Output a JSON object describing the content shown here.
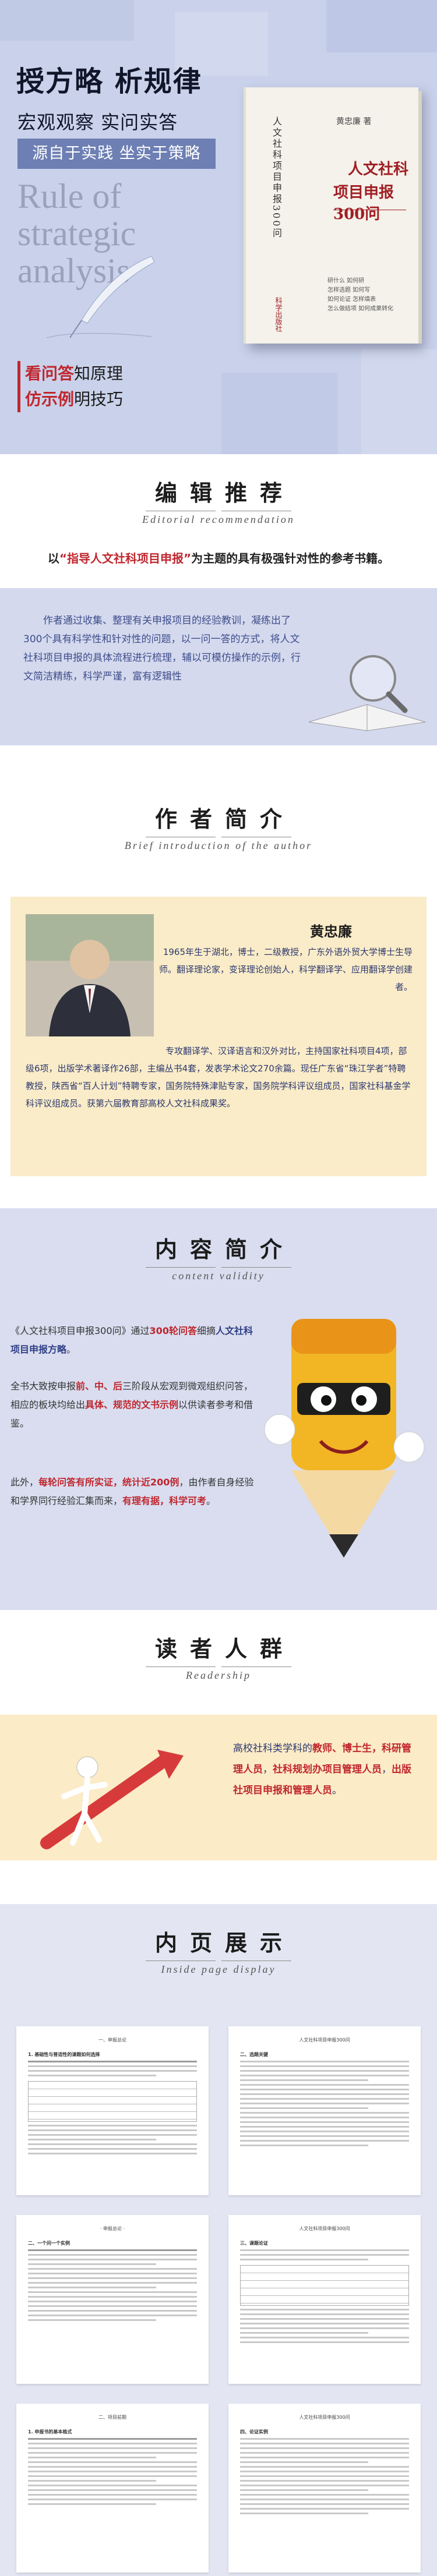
{
  "hero": {
    "title": "授方略  析规律",
    "subtitle": "宏观观察  实问实答",
    "banner": "源自于实践  坐实于策略",
    "big_english": "Rule of strategic analysis",
    "red_lines": [
      {
        "red": "看问答",
        "rest": "知原理"
      },
      {
        "red": "仿示例",
        "rest": "明技巧"
      }
    ],
    "colors": {
      "background": "#c9d2ea",
      "banner": "#6d7fb3",
      "accent": "#c0262e"
    }
  },
  "book": {
    "author": "黄忠廉 著",
    "spine_title": "人文社科项目申报300问",
    "title_line1": "人文社科",
    "title_line2": "项目申报300问",
    "bullets": [
      "研什么 如何研",
      "怎样选题 如何写",
      "如何论证 怎样填表",
      "怎么做结项 如何成果转化"
    ],
    "publisher": "科学出版社"
  },
  "editor": {
    "title": "编辑推荐",
    "english": "Editorial recommendation",
    "lead_prefix": "以",
    "lead_red": "“指导人文社科项目申报”",
    "lead_suffix": "为主题的具有极强针对性的参考书籍。",
    "text": "作者通过收集、整理有关申报项目的经验教训，凝练出了300个具有科学性和针对性的问题，以一问一答的方式，将人文社科项目申报的具体流程进行梳理，辅以可模仿操作的示例，行文简洁精练，科学严谨，富有逻辑性"
  },
  "author": {
    "title": "作者简介",
    "english": "Brief introduction of the author",
    "name": "黄忠廉",
    "intro": "1965年生于湖北，博士，二级教授，广东外语外贸大学博士生导师。翻译理论家，变译理论创始人，科学翻译学、应用翻译学创建者。",
    "bio": "专攻翻译学、汉译语言和汉外对比，主持国家社科项目4项，部级6项，出版学术著译作26部，主编丛书4套，发表学术论文270余篇。现任广东省“珠江学者”特聘教授，陕西省“百人计划”特聘专家，国务院特殊津贴专家，国务院学科评议组成员，国家社科基金学科评议组成员。获第六届教育部高校人文社科成果奖。"
  },
  "content": {
    "title": "内容简介",
    "english": "content validity",
    "p1_pre": "《人文社科项目申报300问》通过",
    "p1_red": "300轮问答",
    "p1_mid": "细摘",
    "p1_blue": "人文社科项目申报方略",
    "p1_post": "。",
    "p2_pre": "全书大致按申报",
    "p2_red1": "前、中、后",
    "p2_mid": "三阶段从宏观到微观组织问答，相应的板块均给出",
    "p2_red2": "具体、规范的文书示例",
    "p2_post": "以供读者参考和借鉴。",
    "p3_pre": "此外，",
    "p3_red1": "每轮问答有所实证，",
    "p3_red2": "统计近200例",
    "p3_mid": "，由作者自身经验和学界同行经验汇集而来，",
    "p3_red3": "有理有据，科学可考",
    "p3_post": "。"
  },
  "readers": {
    "title": "读者人群",
    "english": "Readership",
    "pre": "高校社科类学科的",
    "r1": "教师、博士生，科研管理人员",
    "mid": "，",
    "r2": "社科规划办项目管理人员",
    "mid2": "，",
    "r3": "出版社项目申报和管理人员",
    "post": "。"
  },
  "inner": {
    "title": "内页展示",
    "english": "Inside page display",
    "pages": [
      {
        "header": "一、申报总论",
        "sub": "1. 基础性与普适性的课题如何选择"
      },
      {
        "header": "人文社科项目申报300问",
        "sub": "二、选题关键"
      },
      {
        "header": "· 申报总论 ·",
        "sub": "二、一个问一个实例"
      },
      {
        "header": "人文社科项目申报300问",
        "sub": "三、课题论证"
      },
      {
        "header": "二、项目前期",
        "sub": "1. 申报书的基本格式"
      },
      {
        "header": "人文社科项目申报300问",
        "sub": "四、论证实例"
      }
    ]
  }
}
